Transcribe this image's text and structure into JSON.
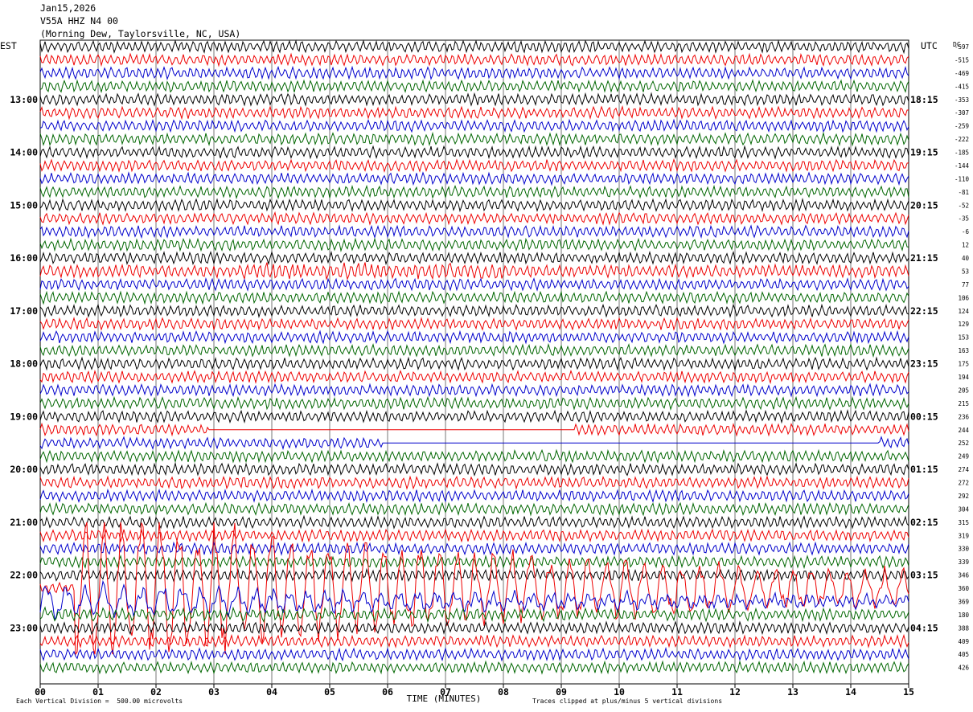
{
  "header": {
    "date": "Jan15,2026",
    "station": "V55A HHZ N4 00",
    "location": "(Morning Dew, Taylorsville, NC, USA)"
  },
  "labels": {
    "left": "EST",
    "right": "UTC",
    "dc": "DC"
  },
  "footer": {
    "x_title": "TIME (MINUTES)",
    "scale": "Each Vertical Division =  500.00 microvolts",
    "clip": "Traces clipped at plus/minus 5 vertical divisions"
  },
  "chart_data": {
    "type": "line",
    "title": "",
    "xlabel": "TIME (MINUTES)",
    "ylabel": "",
    "xlim": [
      0,
      15
    ],
    "x_ticks": [
      "00",
      "01",
      "02",
      "03",
      "04",
      "05",
      "06",
      "07",
      "08",
      "09",
      "10",
      "11",
      "12",
      "13",
      "14",
      "15"
    ],
    "rows": 48,
    "minutes_per_row": 15,
    "trace_colors": [
      "#000000",
      "#ee0000",
      "#0000cc",
      "#006600"
    ],
    "est_labels": [
      {
        "row": 4,
        "text": "13:00"
      },
      {
        "row": 8,
        "text": "14:00"
      },
      {
        "row": 12,
        "text": "15:00"
      },
      {
        "row": 16,
        "text": "16:00"
      },
      {
        "row": 20,
        "text": "17:00"
      },
      {
        "row": 24,
        "text": "18:00"
      },
      {
        "row": 28,
        "text": "19:00"
      },
      {
        "row": 32,
        "text": "20:00"
      },
      {
        "row": 36,
        "text": "21:00"
      },
      {
        "row": 40,
        "text": "22:00"
      },
      {
        "row": 44,
        "text": "23:00"
      }
    ],
    "utc_labels": [
      {
        "row": 4,
        "text": "18:15"
      },
      {
        "row": 8,
        "text": "19:15"
      },
      {
        "row": 12,
        "text": "20:15"
      },
      {
        "row": 16,
        "text": "21:15"
      },
      {
        "row": 20,
        "text": "22:15"
      },
      {
        "row": 24,
        "text": "23:15"
      },
      {
        "row": 28,
        "text": "00:15"
      },
      {
        "row": 32,
        "text": "01:15"
      },
      {
        "row": 36,
        "text": "02:15"
      },
      {
        "row": 40,
        "text": "03:15"
      },
      {
        "row": 44,
        "text": "04:15"
      }
    ],
    "dc_offsets": [
      "-597",
      "-515",
      "-469",
      "-415",
      "-353",
      "-307",
      "-259",
      "-222",
      "-185",
      "-144",
      "-110",
      "-81",
      "-52",
      "-35",
      "-6",
      "12",
      "40",
      "53",
      "77",
      "106",
      "124",
      "129",
      "153",
      "163",
      "175",
      "194",
      "205",
      "215",
      "236",
      "244",
      "252",
      "249",
      "274",
      "272",
      "292",
      "304",
      "315",
      "319",
      "330",
      "339",
      "346",
      "360",
      "369",
      "180",
      "388",
      "409",
      "405",
      "426"
    ],
    "gaps": [
      {
        "row": 29,
        "from": 2.9,
        "to": 9.25
      },
      {
        "row": 30,
        "from": 5.9,
        "to": 10.0
      },
      {
        "row": 30,
        "from": 10.0,
        "to": 10.6
      },
      {
        "row": 30,
        "from": 10.6,
        "to": 14.5
      }
    ],
    "event": {
      "start_row": 41,
      "start_min": 0.6,
      "label": ""
    },
    "amplitude_divisions": 0.35,
    "clip_divisions": 5
  }
}
